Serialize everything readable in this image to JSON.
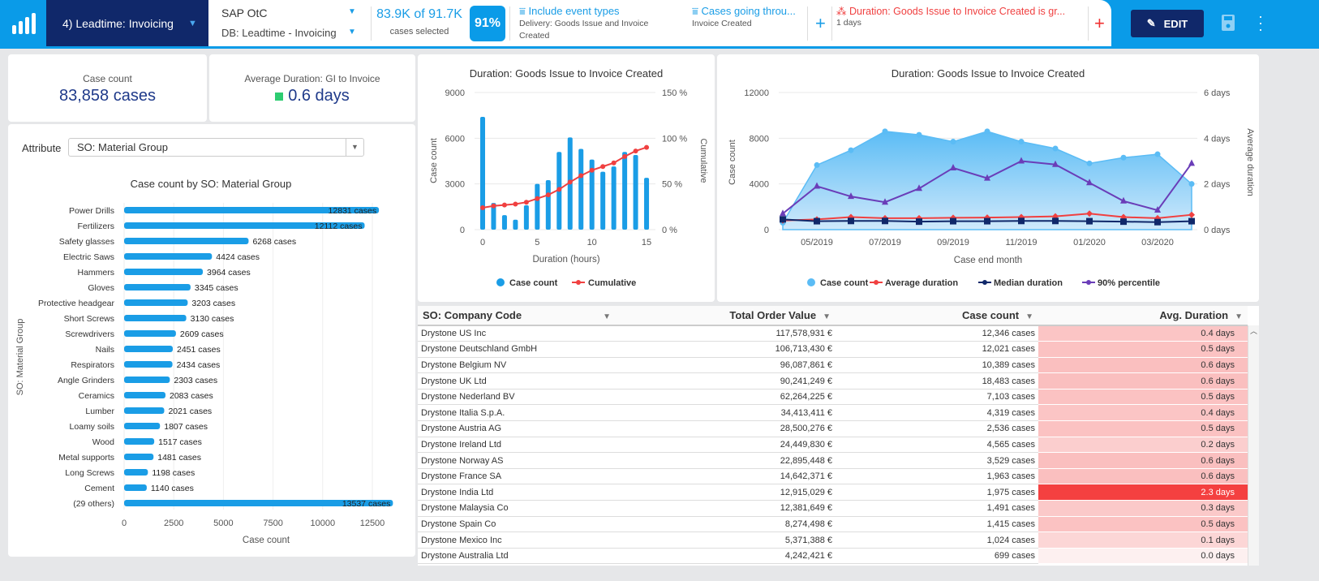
{
  "header": {
    "dashboard": "4) Leadtime: Invoicing",
    "source": "SAP OtC",
    "db": "DB: Leadtime - Invoicing",
    "cases_selected": "83.9K of 91.7K",
    "cases_label": "cases selected",
    "percent": "91%",
    "filters": [
      {
        "title": "Include event types",
        "detail": "Delivery: Goods Issue and Invoice Created",
        "color": "#1a9de6"
      },
      {
        "title": "Cases going throu...",
        "detail": "Invoice Created",
        "color": "#1a9de6"
      },
      {
        "title": "Duration: Goods Issue to Invoice Created is gr...",
        "detail": "1 days",
        "color": "#f04040"
      }
    ],
    "add": "+",
    "edit_label": "EDIT"
  },
  "kpis": [
    {
      "label": "Case count",
      "value": "83,858 cases"
    },
    {
      "label": "Average Duration: GI to Invoice",
      "value": "0.6 days",
      "status_color": "#2ecc71"
    }
  ],
  "attribute": {
    "label": "Attribute",
    "value": "SO: Material Group"
  },
  "chart_data": [
    {
      "type": "bar",
      "orientation": "horizontal",
      "title": "Case count by SO: Material Group",
      "xlabel": "Case count",
      "ylabel": "SO: Material Group",
      "categories": [
        "Power Drills",
        "Fertilizers",
        "Safety glasses",
        "Electric Saws",
        "Hammers",
        "Gloves",
        "Protective headgear",
        "Short Screws",
        "Screwdrivers",
        "Nails",
        "Respirators",
        "Angle Grinders",
        "Ceramics",
        "Lumber",
        "Loamy soils",
        "Wood",
        "Metal supports",
        "Long Screws",
        "Cement",
        "(29 others)"
      ],
      "values": [
        12831,
        12112,
        6268,
        4424,
        3964,
        3345,
        3203,
        3130,
        2609,
        2451,
        2434,
        2303,
        2083,
        2021,
        1807,
        1517,
        1481,
        1198,
        1140,
        13537
      ],
      "value_suffix": " cases",
      "xlim": [
        0,
        13537
      ],
      "xticks": [
        "0",
        "2500",
        "5000",
        "7500",
        "10000",
        "12500"
      ],
      "color": "#1a9de6"
    },
    {
      "type": "bar+line",
      "title": "Duration: Goods Issue to Invoice Created",
      "xlabel": "Duration (hours)",
      "ylabel": "Case count",
      "y2label": "Cumulative",
      "x": [
        0,
        1,
        2,
        3,
        4,
        5,
        6,
        7,
        8,
        9,
        10,
        11,
        12,
        13,
        14,
        15
      ],
      "series": [
        {
          "name": "Case count",
          "values": [
            7400,
            1750,
            950,
            650,
            1600,
            3000,
            3250,
            5100,
            6050,
            5300,
            4600,
            3800,
            4150,
            5100,
            4900,
            3400
          ],
          "color": "#1a9de6"
        },
        {
          "name": "Cumulative",
          "values": [
            24,
            26,
            27,
            28,
            30,
            34,
            38,
            44,
            52,
            59,
            65,
            69,
            73,
            80,
            86,
            90
          ],
          "color": "#f04040",
          "axis": "right"
        }
      ],
      "ylim": [
        0,
        9000
      ],
      "y2lim": [
        0,
        150
      ],
      "yticks": [
        "0",
        "3000",
        "6000",
        "9000"
      ],
      "y2ticks": [
        "0 %",
        "50 %",
        "100 %",
        "150 %"
      ],
      "xticks": [
        "0",
        "5",
        "10",
        "15"
      ]
    },
    {
      "type": "area+line",
      "title": "Duration: Goods Issue to Invoice Created",
      "xlabel": "Case end month",
      "ylabel": "Case count",
      "y2label": "Average duration",
      "x": [
        "04/2019",
        "05/2019",
        "06/2019",
        "07/2019",
        "08/2019",
        "09/2019",
        "10/2019",
        "11/2019",
        "12/2019",
        "01/2020",
        "02/2020",
        "03/2020",
        "04/2020"
      ],
      "xticks": [
        "05/2019",
        "07/2019",
        "09/2019",
        "11/2019",
        "01/2020",
        "03/2020"
      ],
      "ylim": [
        0,
        12000
      ],
      "y2lim": [
        0,
        6
      ],
      "yticks": [
        "0",
        "4000",
        "8000",
        "12000"
      ],
      "y2ticks": [
        "0 days",
        "2 days",
        "4 days",
        "6 days"
      ],
      "series": [
        {
          "name": "Case count",
          "values": [
            600,
            5650,
            6950,
            8600,
            8300,
            7700,
            8600,
            7700,
            7100,
            5800,
            6300,
            6600,
            4000
          ],
          "color": "#5bbcf5"
        },
        {
          "name": "Average duration",
          "values": [
            0.4,
            0.45,
            0.55,
            0.5,
            0.5,
            0.52,
            0.53,
            0.55,
            0.58,
            0.7,
            0.55,
            0.5,
            0.65
          ],
          "color": "#f04040",
          "axis": "right"
        },
        {
          "name": "Median duration",
          "values": [
            0.45,
            0.37,
            0.38,
            0.38,
            0.35,
            0.37,
            0.37,
            0.38,
            0.38,
            0.37,
            0.35,
            0.33,
            0.37
          ],
          "color": "#10286a",
          "axis": "right"
        },
        {
          "name": "90% percentile",
          "values": [
            0.7,
            1.9,
            1.45,
            1.2,
            1.8,
            2.7,
            2.25,
            3.0,
            2.85,
            2.05,
            1.25,
            0.85,
            2.9
          ],
          "color": "#6a3db8",
          "axis": "right"
        }
      ]
    }
  ],
  "table": {
    "columns": [
      "SO: Company Code",
      "Total Order Value",
      "Case count",
      "Avg. Duration"
    ],
    "rows": [
      [
        "Drystone US Inc",
        "117,578,931 €",
        "12,346 cases",
        "0.4 days"
      ],
      [
        "Drystone Deutschland GmbH",
        "106,713,430 €",
        "12,021 cases",
        "0.5 days"
      ],
      [
        "Drystone Belgium NV",
        "96,087,861 €",
        "10,389 cases",
        "0.6 days"
      ],
      [
        "Drystone UK Ltd",
        "90,241,249 €",
        "18,483 cases",
        "0.6 days"
      ],
      [
        "Drystone Nederland BV",
        "62,264,225 €",
        "7,103 cases",
        "0.5 days"
      ],
      [
        "Drystone Italia S.p.A.",
        "34,413,411 €",
        "4,319 cases",
        "0.4 days"
      ],
      [
        "Drystone Austria AG",
        "28,500,276 €",
        "2,536 cases",
        "0.5 days"
      ],
      [
        "Drystone Ireland Ltd",
        "24,449,830 €",
        "4,565 cases",
        "0.2 days"
      ],
      [
        "Drystone Norway AS",
        "22,895,448 €",
        "3,529 cases",
        "0.6 days"
      ],
      [
        "Drystone France SA",
        "14,642,371 €",
        "1,963 cases",
        "0.6 days"
      ],
      [
        "Drystone India Ltd",
        "12,915,029 €",
        "1,975 cases",
        "2.3 days"
      ],
      [
        "Drystone Malaysia Co",
        "12,381,649 €",
        "1,491 cases",
        "0.3 days"
      ],
      [
        "Drystone Spain Co",
        "8,274,498 €",
        "1,415 cases",
        "0.5 days"
      ],
      [
        "Drystone Mexico Inc",
        "5,371,388 €",
        "1,024 cases",
        "0.1 days"
      ],
      [
        "Drystone Australia Ltd",
        "4,242,421 €",
        "699 cases",
        "0.0 days"
      ]
    ],
    "heat_colors": {
      "low": "#fdf0f0",
      "high": "#f44040"
    }
  }
}
